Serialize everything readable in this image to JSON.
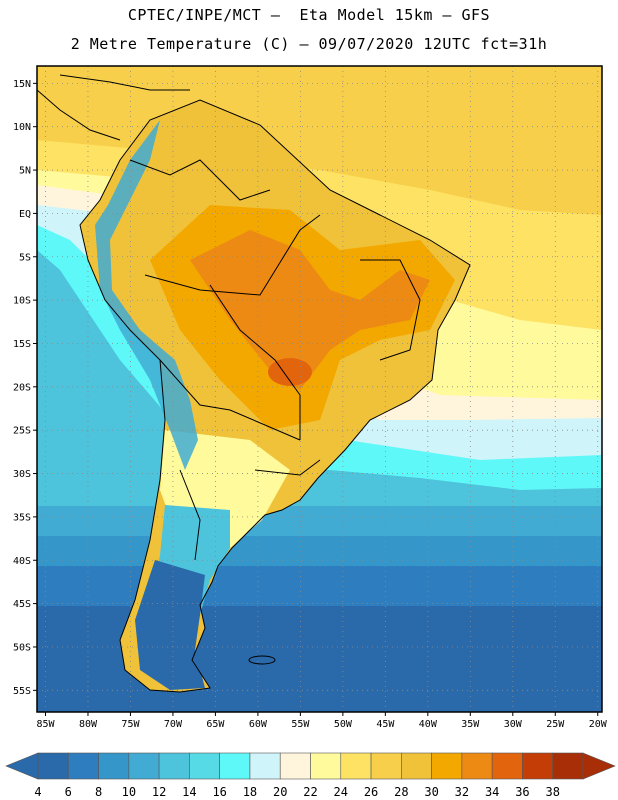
{
  "header": {
    "title_line1": "CPTEC/INPE/MCT –  Eta Model 15km – GFS",
    "title_line2": "2 Metre Temperature (C) – 09/07/2020 12UTC fct=31h"
  },
  "map": {
    "lat_labels": [
      "15N",
      "10N",
      "5N",
      "EQ",
      "5S",
      "10S",
      "15S",
      "20S",
      "25S",
      "30S",
      "35S",
      "40S",
      "45S",
      "50S",
      "55S"
    ],
    "lat_values": [
      15,
      10,
      5,
      0,
      -5,
      -10,
      -15,
      -20,
      -25,
      -30,
      -35,
      -40,
      -45,
      -50,
      -55
    ],
    "lon_labels": [
      "85W",
      "80W",
      "75W",
      "70W",
      "65W",
      "60W",
      "55W",
      "50W",
      "45W",
      "40W",
      "35W",
      "30W",
      "25W",
      "20W"
    ],
    "lon_values": [
      -85,
      -80,
      -75,
      -70,
      -65,
      -60,
      -55,
      -50,
      -45,
      -40,
      -35,
      -30,
      -25,
      -20
    ],
    "lat_range": [
      -57.5,
      17
    ],
    "lon_range": [
      -86,
      -19.5
    ]
  },
  "colorbar": {
    "ticks": [
      "4",
      "6",
      "8",
      "10",
      "12",
      "14",
      "16",
      "18",
      "20",
      "22",
      "24",
      "26",
      "28",
      "30",
      "32",
      "34",
      "36",
      "38"
    ],
    "colors": [
      "#2a6aaa",
      "#2e7dbe",
      "#3597c9",
      "#41abd3",
      "#4ec3dc",
      "#56dbe6",
      "#5ff8f8",
      "#cff4fa",
      "#fff5dc",
      "#fffa9b",
      "#fee264",
      "#f8cf4a",
      "#f0c23a",
      "#f3a800",
      "#ec8a14",
      "#e2650d",
      "#c43c06",
      "#a82e08"
    ]
  }
}
